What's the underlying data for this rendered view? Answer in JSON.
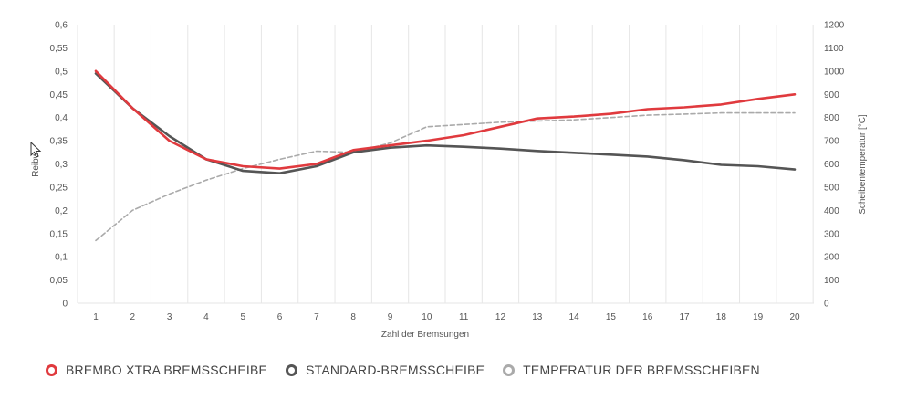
{
  "chart_data": {
    "type": "line",
    "xlabel": "Zahl der Bremsungen",
    "ylabel": "Reibw",
    "y2label": "Scheibentemperatur [°C]",
    "x": [
      1,
      2,
      3,
      4,
      5,
      6,
      7,
      8,
      9,
      10,
      11,
      12,
      13,
      14,
      15,
      16,
      17,
      18,
      19,
      20
    ],
    "x_ticks": [
      "1",
      "2",
      "3",
      "4",
      "5",
      "6",
      "7",
      "8",
      "9",
      "10",
      "11",
      "12",
      "13",
      "14",
      "15",
      "16",
      "17",
      "18",
      "19",
      "20"
    ],
    "ylim": [
      0,
      0.6
    ],
    "y_ticks": [
      "0",
      "0,05",
      "0,1",
      "0,15",
      "0,2",
      "0,25",
      "0,3",
      "0,35",
      "0,4",
      "0,45",
      "0,5",
      "0,55",
      "0,6"
    ],
    "y2lim": [
      0,
      1200
    ],
    "y2_ticks": [
      "0",
      "100",
      "200",
      "300",
      "400",
      "500",
      "600",
      "700",
      "800",
      "900",
      "1000",
      "1100",
      "1200"
    ],
    "grid": "vertical",
    "series": [
      {
        "name": "BREMBO XTRA BREMSSCHEIBE",
        "axis": "left",
        "color": "#e03a3e",
        "style": "solid",
        "values": [
          0.5,
          0.42,
          0.35,
          0.31,
          0.295,
          0.29,
          0.3,
          0.33,
          0.34,
          0.35,
          0.362,
          0.38,
          0.398,
          0.402,
          0.408,
          0.418,
          0.422,
          0.428,
          0.44,
          0.45
        ]
      },
      {
        "name": "STANDARD-BREMSSCHEIBE",
        "axis": "left",
        "color": "#555555",
        "style": "solid",
        "values": [
          0.495,
          0.42,
          0.36,
          0.31,
          0.285,
          0.28,
          0.295,
          0.325,
          0.335,
          0.34,
          0.337,
          0.333,
          0.328,
          0.324,
          0.32,
          0.316,
          0.308,
          0.298,
          0.295,
          0.288
        ]
      },
      {
        "name": "TEMPERATUR DER BREMSSCHEIBEN",
        "axis": "right",
        "color": "#aaaaaa",
        "style": "dashed",
        "values": [
          270,
          400,
          470,
          530,
          580,
          620,
          655,
          650,
          690,
          760,
          770,
          780,
          785,
          790,
          800,
          810,
          815,
          820,
          820,
          820
        ]
      }
    ]
  },
  "legend": [
    {
      "label": "BREMBO XTRA BREMSSCHEIBE",
      "color": "#e03a3e"
    },
    {
      "label": "STANDARD-BREMSSCHEIBE",
      "color": "#555555"
    },
    {
      "label": "TEMPERATUR DER BREMSSCHEIBEN",
      "color": "#aaaaaa"
    }
  ]
}
